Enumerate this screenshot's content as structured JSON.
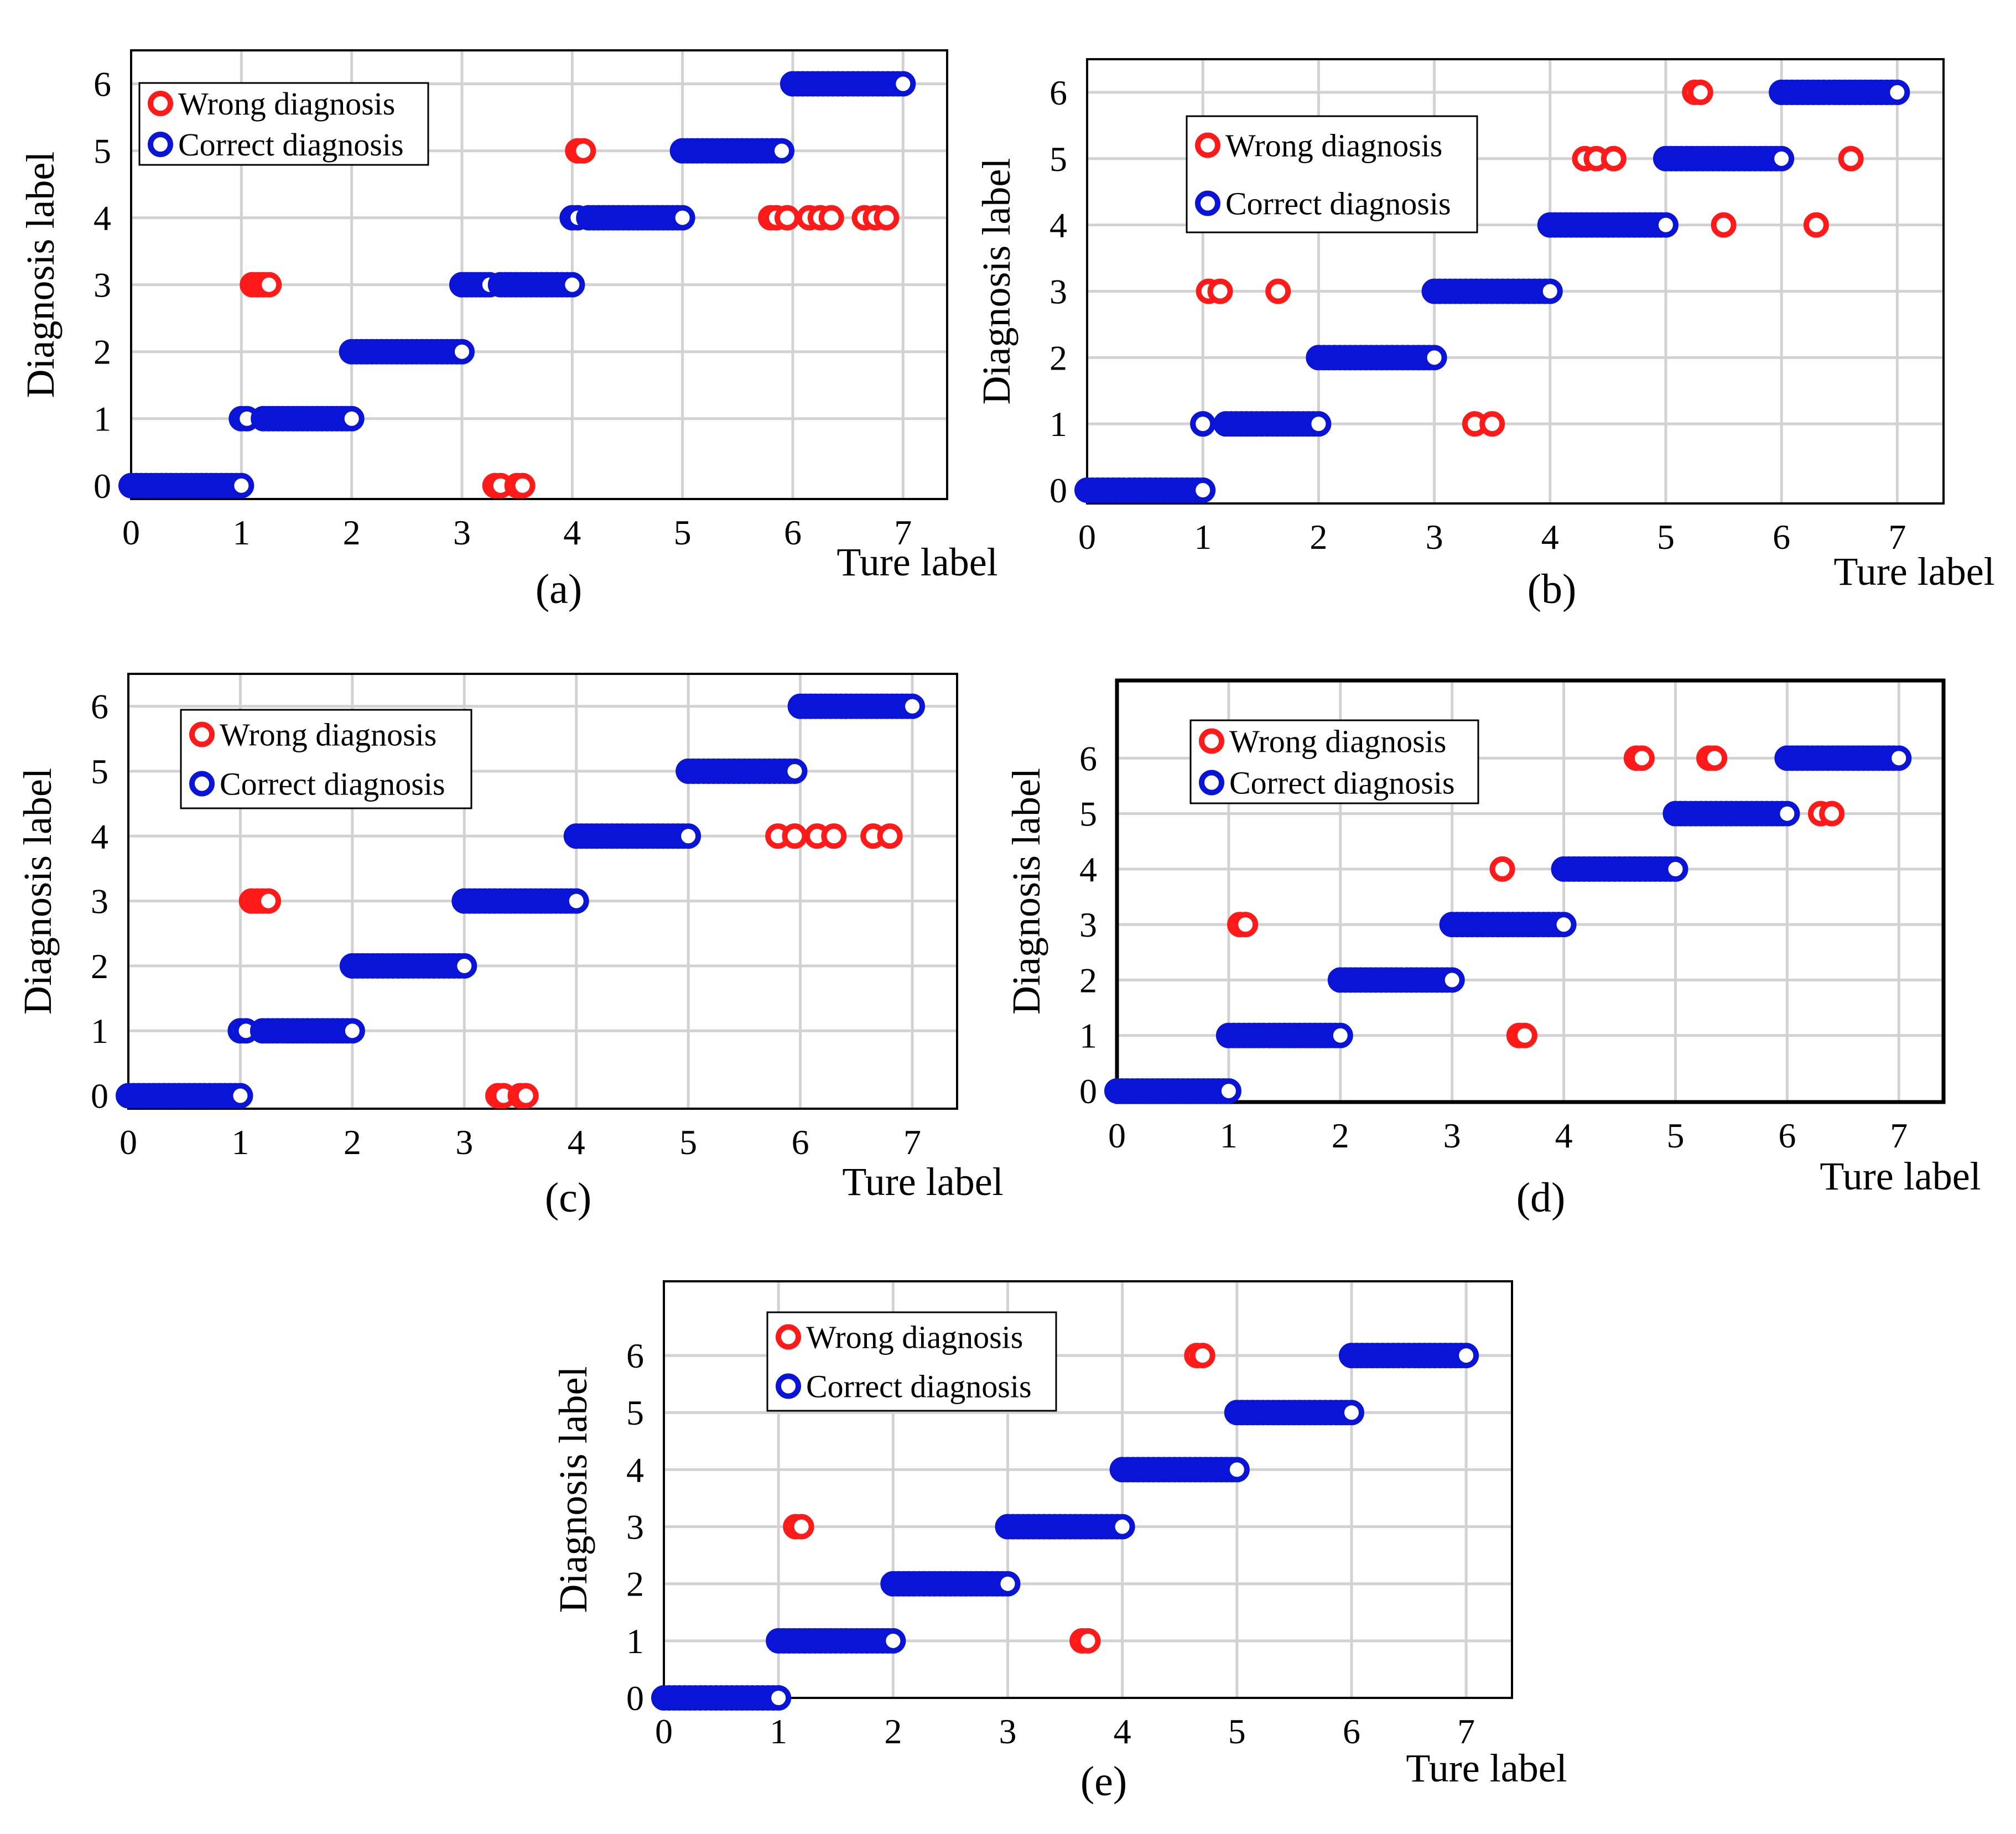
{
  "figure": {
    "legend_labels": {
      "wrong": "Wrong diagnosis",
      "correct": "Correct diagnosis"
    },
    "colors": {
      "wrong": "#ff1a1a",
      "correct": "#0a14d6",
      "grid": "#d2d2d2",
      "axes": "#000000"
    }
  },
  "chart_data": [
    {
      "panel": "(a)",
      "type": "scatter",
      "xlabel": "Ture label",
      "ylabel": "Diagnosis label",
      "xlim": [
        0,
        7.4
      ],
      "ylim": [
        -0.2,
        6.5
      ],
      "xticks": [
        0,
        1,
        2,
        3,
        4,
        5,
        6,
        7
      ],
      "yticks": [
        0,
        1,
        2,
        3,
        4,
        5,
        6
      ],
      "legend": "top-left",
      "series": [
        {
          "name": "Wrong diagnosis",
          "points": [
            [
              1.1,
              3
            ],
            [
              1.15,
              3
            ],
            [
              1.2,
              3
            ],
            [
              1.25,
              3
            ],
            [
              3.3,
              0
            ],
            [
              3.35,
              0
            ],
            [
              3.5,
              0
            ],
            [
              3.55,
              0
            ],
            [
              4.05,
              5
            ],
            [
              4.1,
              5
            ],
            [
              5.8,
              4
            ],
            [
              5.85,
              4
            ],
            [
              5.95,
              4
            ],
            [
              6.15,
              4
            ],
            [
              6.25,
              4
            ],
            [
              6.35,
              4
            ],
            [
              6.65,
              4
            ],
            [
              6.75,
              4
            ],
            [
              6.85,
              4
            ]
          ]
        },
        {
          "name": "Correct diagnosis",
          "runs": [
            [
              0.0,
              1.0,
              0
            ],
            [
              1.0,
              1.05,
              1
            ],
            [
              1.2,
              2.0,
              1
            ],
            [
              2.0,
              3.0,
              2
            ],
            [
              3.0,
              3.25,
              3
            ],
            [
              3.35,
              4.0,
              3
            ],
            [
              4.0,
              4.05,
              4
            ],
            [
              4.15,
              5.0,
              4
            ],
            [
              5.0,
              5.9,
              5
            ],
            [
              6.0,
              7.0,
              6
            ]
          ]
        }
      ]
    },
    {
      "panel": "(b)",
      "type": "scatter",
      "xlabel": "Ture label",
      "ylabel": "Diagnosis label",
      "xlim": [
        0,
        7.4
      ],
      "ylim": [
        -0.2,
        6.5
      ],
      "xticks": [
        0,
        1,
        2,
        3,
        4,
        5,
        6,
        7
      ],
      "yticks": [
        0,
        1,
        2,
        3,
        4,
        5,
        6
      ],
      "legend": "top-left",
      "series": [
        {
          "name": "Wrong diagnosis",
          "points": [
            [
              1.05,
              3
            ],
            [
              1.15,
              3
            ],
            [
              1.65,
              3
            ],
            [
              3.35,
              1
            ],
            [
              3.5,
              1
            ],
            [
              4.3,
              5
            ],
            [
              4.4,
              5
            ],
            [
              4.55,
              5
            ],
            [
              5.25,
              6
            ],
            [
              5.3,
              6
            ],
            [
              5.5,
              4
            ],
            [
              6.3,
              4
            ],
            [
              6.6,
              5
            ]
          ]
        },
        {
          "name": "Correct diagnosis",
          "runs": [
            [
              0.0,
              1.0,
              0
            ],
            [
              1.0,
              1.0,
              1
            ],
            [
              1.2,
              2.0,
              1
            ],
            [
              2.0,
              3.0,
              2
            ],
            [
              3.0,
              4.0,
              3
            ],
            [
              4.0,
              5.0,
              4
            ],
            [
              5.0,
              6.0,
              5
            ],
            [
              6.0,
              7.0,
              6
            ]
          ]
        }
      ]
    },
    {
      "panel": "(c)",
      "type": "scatter",
      "xlabel": "Ture label",
      "ylabel": "Diagnosis label",
      "xlim": [
        0,
        7.4
      ],
      "ylim": [
        -0.2,
        6.5
      ],
      "xticks": [
        0,
        1,
        2,
        3,
        4,
        5,
        6,
        7
      ],
      "yticks": [
        0,
        1,
        2,
        3,
        4,
        5,
        6
      ],
      "legend": "top-left",
      "series": [
        {
          "name": "Wrong diagnosis",
          "points": [
            [
              1.1,
              3
            ],
            [
              1.15,
              3
            ],
            [
              1.2,
              3
            ],
            [
              1.25,
              3
            ],
            [
              3.3,
              0
            ],
            [
              3.35,
              0
            ],
            [
              3.5,
              0
            ],
            [
              3.55,
              0
            ],
            [
              5.8,
              4
            ],
            [
              5.95,
              4
            ],
            [
              6.15,
              4
            ],
            [
              6.3,
              4
            ],
            [
              6.65,
              4
            ],
            [
              6.8,
              4
            ]
          ]
        },
        {
          "name": "Correct diagnosis",
          "runs": [
            [
              0.0,
              1.0,
              0
            ],
            [
              1.0,
              1.05,
              1
            ],
            [
              1.2,
              2.0,
              1
            ],
            [
              2.0,
              3.0,
              2
            ],
            [
              3.0,
              4.0,
              3
            ],
            [
              4.0,
              5.0,
              4
            ],
            [
              5.0,
              5.95,
              5
            ],
            [
              6.0,
              7.0,
              6
            ]
          ]
        }
      ]
    },
    {
      "panel": "(d)",
      "type": "scatter",
      "xlabel": "Ture label",
      "ylabel": "Diagnosis label",
      "xlim": [
        0,
        7.4
      ],
      "ylim": [
        -0.2,
        7.4
      ],
      "xticks": [
        0,
        1,
        2,
        3,
        4,
        5,
        6,
        7
      ],
      "yticks": [
        0,
        1,
        2,
        3,
        4,
        5,
        6
      ],
      "legend": "top-left",
      "series": [
        {
          "name": "Wrong diagnosis",
          "points": [
            [
              1.1,
              3
            ],
            [
              1.15,
              3
            ],
            [
              3.45,
              4
            ],
            [
              3.6,
              1
            ],
            [
              3.65,
              1
            ],
            [
              4.65,
              6
            ],
            [
              4.7,
              6
            ],
            [
              5.3,
              6
            ],
            [
              5.35,
              6
            ],
            [
              6.3,
              5
            ],
            [
              6.4,
              5
            ]
          ]
        },
        {
          "name": "Correct diagnosis",
          "runs": [
            [
              0.0,
              1.0,
              0
            ],
            [
              1.0,
              2.0,
              1
            ],
            [
              2.0,
              3.0,
              2
            ],
            [
              3.0,
              4.0,
              3
            ],
            [
              4.0,
              5.0,
              4
            ],
            [
              5.0,
              6.0,
              5
            ],
            [
              6.0,
              7.0,
              6
            ]
          ]
        }
      ]
    },
    {
      "panel": "(e)",
      "type": "scatter",
      "xlabel": "Ture label",
      "ylabel": "Diagnosis label",
      "xlim": [
        0,
        7.4
      ],
      "ylim": [
        0,
        7.3
      ],
      "xticks": [
        0,
        1,
        2,
        3,
        4,
        5,
        6,
        7
      ],
      "yticks": [
        0,
        1,
        2,
        3,
        4,
        5,
        6
      ],
      "legend": "top-left",
      "series": [
        {
          "name": "Wrong diagnosis",
          "points": [
            [
              1.15,
              3
            ],
            [
              1.2,
              3
            ],
            [
              3.65,
              1
            ],
            [
              3.7,
              1
            ],
            [
              4.65,
              6
            ],
            [
              4.7,
              6
            ]
          ]
        },
        {
          "name": "Correct diagnosis",
          "runs": [
            [
              0.0,
              1.0,
              0
            ],
            [
              1.0,
              2.0,
              1
            ],
            [
              2.0,
              3.0,
              2
            ],
            [
              3.0,
              4.0,
              3
            ],
            [
              4.0,
              5.0,
              4
            ],
            [
              5.0,
              6.0,
              5
            ],
            [
              6.0,
              7.0,
              6
            ]
          ]
        }
      ]
    }
  ]
}
